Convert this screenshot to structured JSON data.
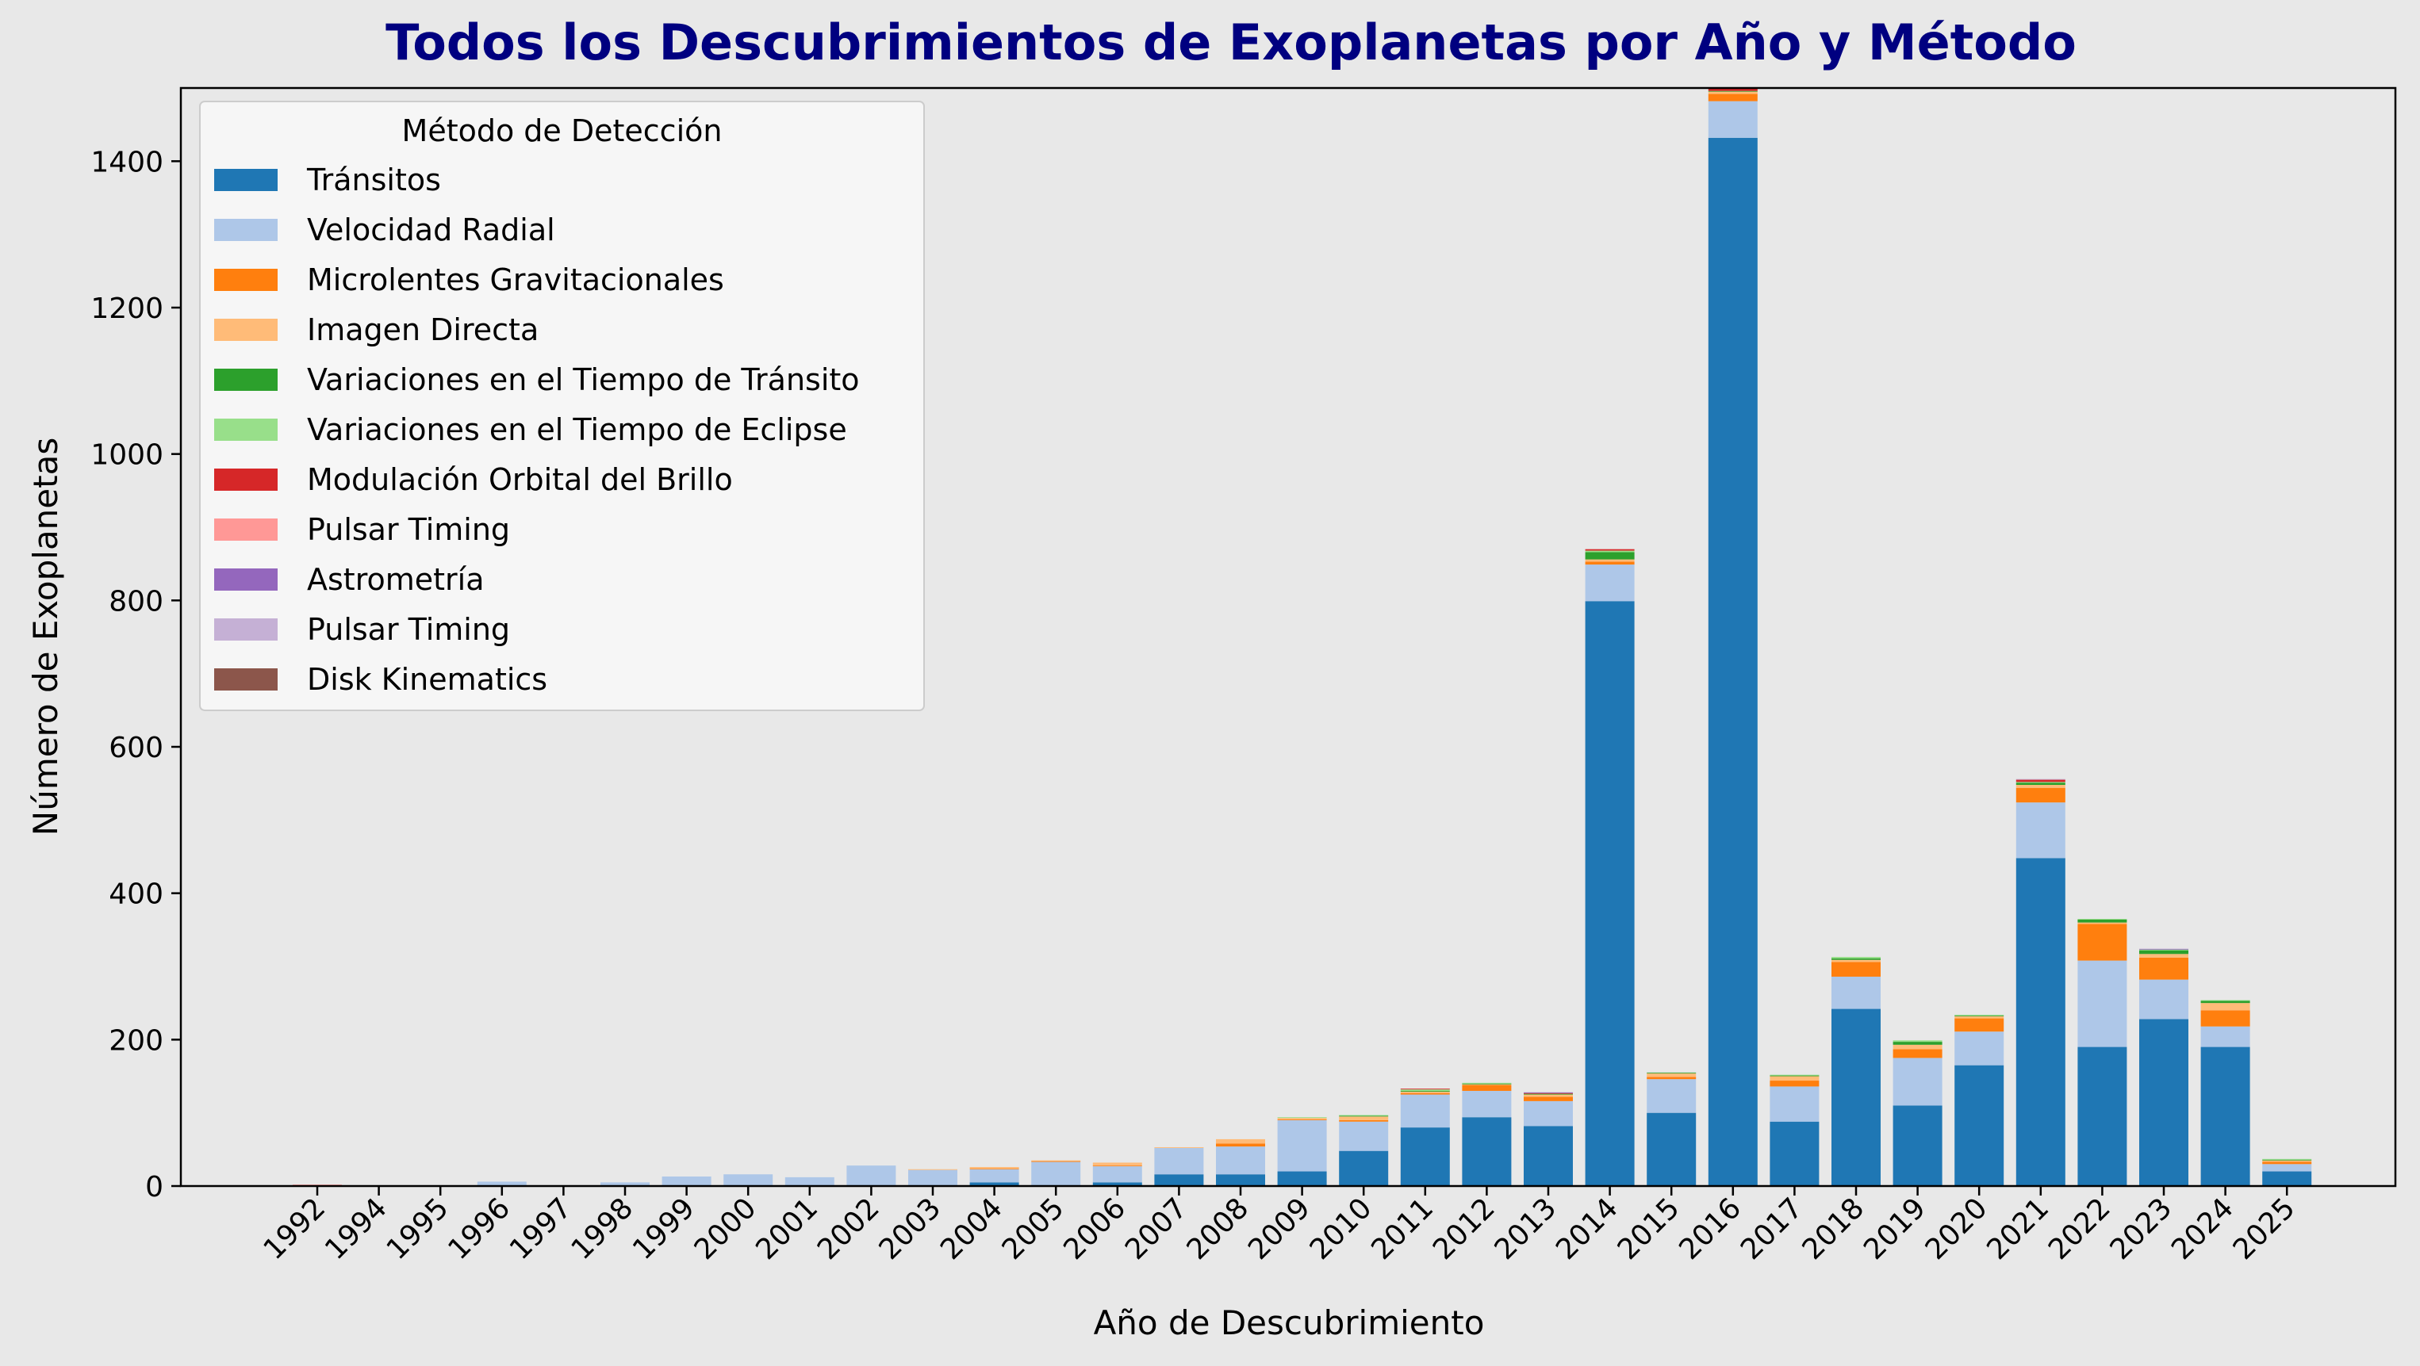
{
  "chart_data": {
    "type": "bar",
    "stacked": true,
    "title": "Todos los Descubrimientos de Exoplanetas por Año y Método",
    "xlabel": "Año de Descubrimiento",
    "ylabel": "Número de Exoplanetas",
    "ylim": [
      0,
      1500
    ],
    "yticks": [
      0,
      200,
      400,
      600,
      800,
      1000,
      1200,
      1400
    ],
    "grid": false,
    "legend_title": "Método de Detección",
    "legend_position": "top-left",
    "background": "#e8e8e8",
    "title_color": "#000080",
    "categories": [
      "1992",
      "1994",
      "1995",
      "1996",
      "1997",
      "1998",
      "1999",
      "2000",
      "2001",
      "2002",
      "2003",
      "2004",
      "2005",
      "2006",
      "2007",
      "2008",
      "2009",
      "2010",
      "2011",
      "2012",
      "2013",
      "2014",
      "2015",
      "2016",
      "2017",
      "2018",
      "2019",
      "2020",
      "2021",
      "2022",
      "2023",
      "2024",
      "2025"
    ],
    "series": [
      {
        "name": "Tránsitos",
        "color": "#1f77b4",
        "values": [
          0,
          0,
          0,
          0,
          0,
          0,
          0,
          0,
          0,
          0,
          0,
          5,
          0,
          5,
          16,
          16,
          20,
          48,
          80,
          94,
          82,
          799,
          100,
          1432,
          88,
          242,
          110,
          165,
          448,
          190,
          228,
          190,
          20
        ]
      },
      {
        "name": "Velocidad Radial",
        "color": "#aec7e8",
        "values": [
          0,
          0,
          1,
          6,
          1,
          5,
          13,
          16,
          12,
          28,
          22,
          18,
          33,
          22,
          36,
          38,
          70,
          40,
          45,
          36,
          34,
          50,
          46,
          50,
          48,
          44,
          65,
          46,
          76,
          118,
          54,
          28,
          10
        ]
      },
      {
        "name": "Microlentes Gravitacionales",
        "color": "#ff7f0e",
        "values": [
          0,
          0,
          0,
          0,
          0,
          0,
          0,
          0,
          0,
          0,
          0,
          1,
          1,
          1,
          0,
          4,
          1,
          2,
          2,
          8,
          6,
          4,
          3,
          10,
          8,
          20,
          12,
          18,
          20,
          50,
          30,
          22,
          3
        ]
      },
      {
        "name": "Imagen Directa",
        "color": "#ffbb78",
        "values": [
          0,
          0,
          0,
          0,
          0,
          0,
          0,
          0,
          0,
          0,
          1,
          2,
          1,
          4,
          1,
          6,
          2,
          5,
          2,
          1,
          3,
          3,
          5,
          3,
          6,
          3,
          6,
          3,
          4,
          2,
          5,
          10,
          2
        ]
      },
      {
        "name": "Variaciones en el Tiempo de Tránsito",
        "color": "#2ca02c",
        "values": [
          0,
          0,
          0,
          0,
          0,
          0,
          0,
          0,
          0,
          0,
          0,
          0,
          0,
          0,
          0,
          0,
          0,
          1,
          1,
          1,
          1,
          10,
          1,
          1,
          1,
          2,
          4,
          1,
          3,
          4,
          5,
          3,
          1
        ]
      },
      {
        "name": "Variaciones en el Tiempo de Eclipse",
        "color": "#98df8a",
        "values": [
          0,
          0,
          0,
          0,
          0,
          0,
          0,
          0,
          0,
          0,
          0,
          0,
          0,
          0,
          0,
          0,
          1,
          1,
          2,
          1,
          0,
          2,
          0,
          0,
          1,
          2,
          2,
          1,
          1,
          1,
          1,
          1,
          1
        ]
      },
      {
        "name": "Modulación Orbital del Brillo",
        "color": "#d62728",
        "values": [
          0,
          0,
          0,
          0,
          0,
          0,
          0,
          0,
          0,
          0,
          0,
          0,
          0,
          0,
          0,
          0,
          0,
          0,
          1,
          0,
          1,
          2,
          0,
          3,
          0,
          0,
          0,
          0,
          3,
          0,
          0,
          0,
          0
        ]
      },
      {
        "name": "Pulsar Timing",
        "color": "#ff9896",
        "values": [
          2,
          1,
          0,
          0,
          0,
          0,
          0,
          0,
          0,
          0,
          0,
          0,
          0,
          0,
          0,
          0,
          0,
          0,
          0,
          0,
          0,
          0,
          0,
          0,
          0,
          0,
          0,
          0,
          0,
          0,
          0,
          0,
          0
        ]
      },
      {
        "name": "Astrometría",
        "color": "#9467bd",
        "values": [
          0,
          0,
          0,
          0,
          0,
          0,
          0,
          0,
          0,
          0,
          0,
          0,
          0,
          0,
          0,
          0,
          0,
          0,
          0,
          0,
          1,
          0,
          0,
          0,
          0,
          0,
          0,
          0,
          0,
          0,
          1,
          0,
          0
        ]
      },
      {
        "name": "Pulsar Timing",
        "color": "#c5b0d5",
        "values": [
          0,
          0,
          0,
          0,
          0,
          0,
          0,
          0,
          0,
          0,
          0,
          0,
          0,
          0,
          0,
          0,
          0,
          0,
          0,
          0,
          0,
          0,
          0,
          0,
          0,
          0,
          0,
          0,
          1,
          0,
          0,
          0,
          0
        ]
      },
      {
        "name": "Disk Kinematics",
        "color": "#8c564b",
        "values": [
          0,
          0,
          0,
          0,
          0,
          0,
          0,
          0,
          0,
          0,
          0,
          0,
          0,
          0,
          0,
          0,
          0,
          0,
          0,
          0,
          0,
          0,
          0,
          0,
          0,
          0,
          0,
          0,
          0,
          0,
          0,
          0,
          0
        ]
      }
    ]
  }
}
